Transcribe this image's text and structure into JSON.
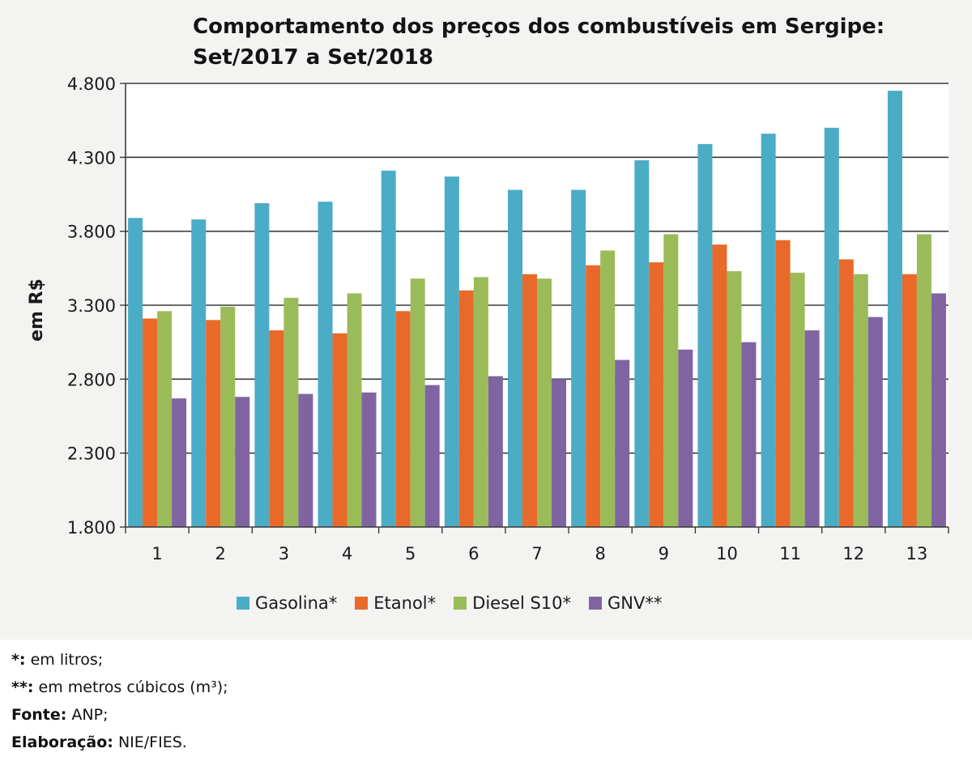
{
  "chart_data": {
    "type": "bar",
    "title": "Comportamento dos preços dos combustíveis em Sergipe: Set/2017 a Set/2018",
    "xlabel": "",
    "ylabel": "em R$",
    "ylim": [
      1.8,
      4.8
    ],
    "yticks": [
      "1.800",
      "2.300",
      "2.800",
      "3.300",
      "3.800",
      "4.300",
      "4.800"
    ],
    "grid": true,
    "legend_position": "bottom",
    "categories": [
      "1",
      "2",
      "3",
      "4",
      "5",
      "6",
      "7",
      "8",
      "9",
      "10",
      "11",
      "12",
      "13"
    ],
    "series": [
      {
        "name": "Gasolina*",
        "color": "#4bacc6",
        "values": [
          3.89,
          3.88,
          3.99,
          4.0,
          4.21,
          4.17,
          4.08,
          4.08,
          4.28,
          4.39,
          4.46,
          4.5,
          4.75
        ]
      },
      {
        "name": "Etanol*",
        "color": "#e8692a",
        "values": [
          3.21,
          3.2,
          3.13,
          3.11,
          3.26,
          3.4,
          3.51,
          3.57,
          3.59,
          3.71,
          3.74,
          3.61,
          3.51
        ]
      },
      {
        "name": "Diesel S10*",
        "color": "#9bbb59",
        "values": [
          3.26,
          3.29,
          3.35,
          3.38,
          3.48,
          3.49,
          3.48,
          3.67,
          3.78,
          3.53,
          3.52,
          3.51,
          3.78
        ]
      },
      {
        "name": "GNV**",
        "color": "#8064a2",
        "values": [
          2.67,
          2.68,
          2.7,
          2.71,
          2.76,
          2.82,
          2.8,
          2.93,
          3.0,
          3.05,
          3.13,
          3.22,
          3.38
        ]
      }
    ]
  },
  "notes": [
    {
      "key": "*:",
      "text": " em litros;"
    },
    {
      "key": "**:",
      "text": " em metros cúbicos (m³);"
    },
    {
      "key": "Fonte:",
      "text": " ANP;"
    },
    {
      "key": "Elaboração:",
      "text": " NIE/FIES."
    }
  ]
}
